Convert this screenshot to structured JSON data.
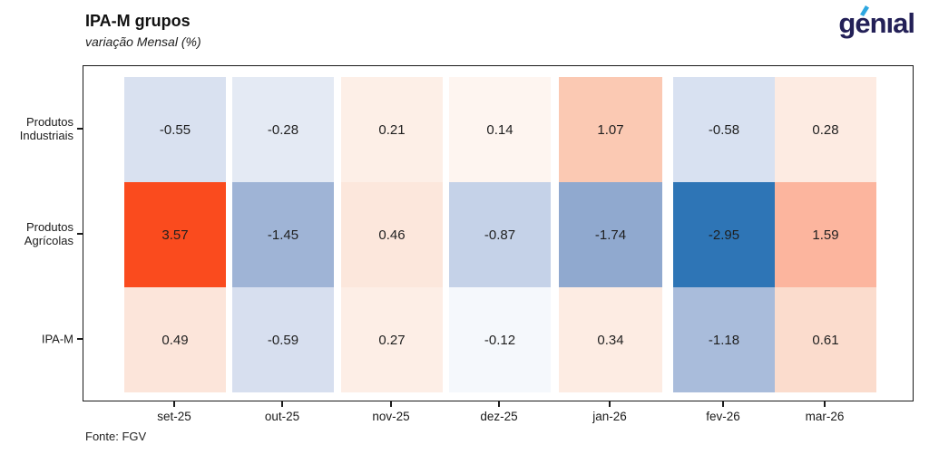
{
  "header": {
    "title": "IPA-M grupos",
    "subtitle": "variação Mensal (%)",
    "logo_text": "genıal"
  },
  "footer": {
    "source": "Fonte: FGV"
  },
  "colors": {
    "logo_navy": "#232057",
    "logo_accent_blue": "#2ea7e0",
    "max_positive_red": "#fa4b1e",
    "max_negative_blue": "#2e75b6",
    "text": "#1a1a1a",
    "background": "#ffffff"
  },
  "chart_data": {
    "type": "heatmap",
    "title": "IPA-M grupos",
    "subtitle": "variação Mensal (%)",
    "source": "Fonte: FGV",
    "colormap": "diverging red (positive) / blue (negative), centered at 0",
    "value_range_shown": [
      -2.95,
      3.57
    ],
    "x_labels": [
      "set-25",
      "out-25",
      "nov-25",
      "dez-25",
      "jan-26",
      "fev-26",
      "mar-26"
    ],
    "y_labels": [
      "Produtos Industriais",
      "Produtos Agrícolas",
      "IPA-M"
    ],
    "series": [
      {
        "name": "Produtos Industriais",
        "values": [
          -0.55,
          -0.28,
          0.21,
          0.14,
          1.07,
          -0.58,
          0.28
        ]
      },
      {
        "name": "Produtos Agrícolas",
        "values": [
          3.57,
          -1.45,
          0.46,
          -0.87,
          -1.74,
          -2.95,
          1.59
        ]
      },
      {
        "name": "IPA-M",
        "values": [
          0.49,
          -0.59,
          0.27,
          -0.12,
          0.34,
          -1.18,
          0.61
        ]
      }
    ],
    "cell_colors": [
      [
        "#d9e1f0",
        "#e4eaf4",
        "#fdefe7",
        "#fef5f0",
        "#fbc9b3",
        "#d8e1f1",
        "#fdebe2"
      ],
      [
        "#fa4b1e",
        "#9fb4d6",
        "#fce7dc",
        "#c5d2e8",
        "#90a9cf",
        "#2e75b6",
        "#fcb59e"
      ],
      [
        "#fce5da",
        "#d7dfef",
        "#fdeee6",
        "#f5f8fc",
        "#fdece3",
        "#a9bcdb",
        "#fbdccd"
      ]
    ]
  }
}
